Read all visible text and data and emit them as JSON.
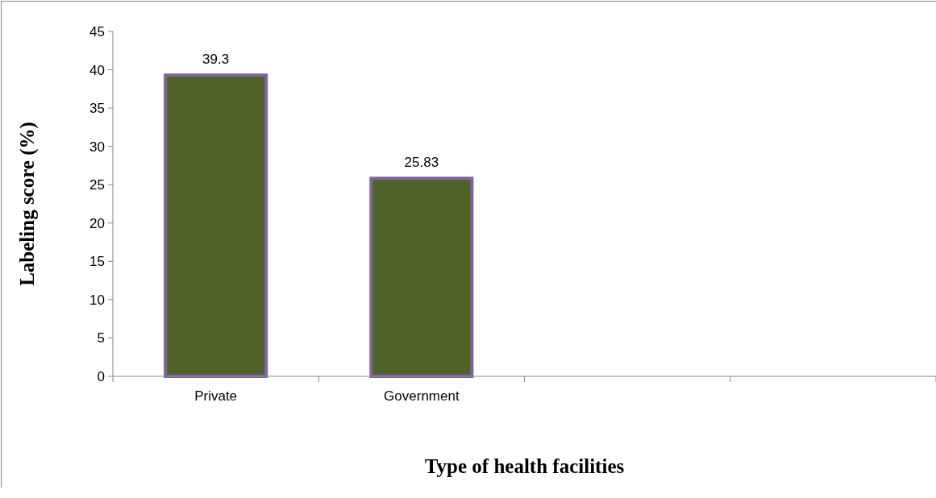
{
  "chart_data": {
    "type": "bar",
    "xlabel": "Type of health facilities",
    "ylabel": "Labeling score (%)",
    "categories": [
      "Private",
      "Government",
      null,
      null
    ],
    "values": [
      39.3,
      25.83,
      null,
      null
    ],
    "color": "#4f6228",
    "ylim": [
      0,
      45
    ],
    "yticks": [
      0,
      5,
      10,
      15,
      20,
      25,
      30,
      35,
      40,
      45
    ],
    "data_labels": true,
    "grid": false
  }
}
